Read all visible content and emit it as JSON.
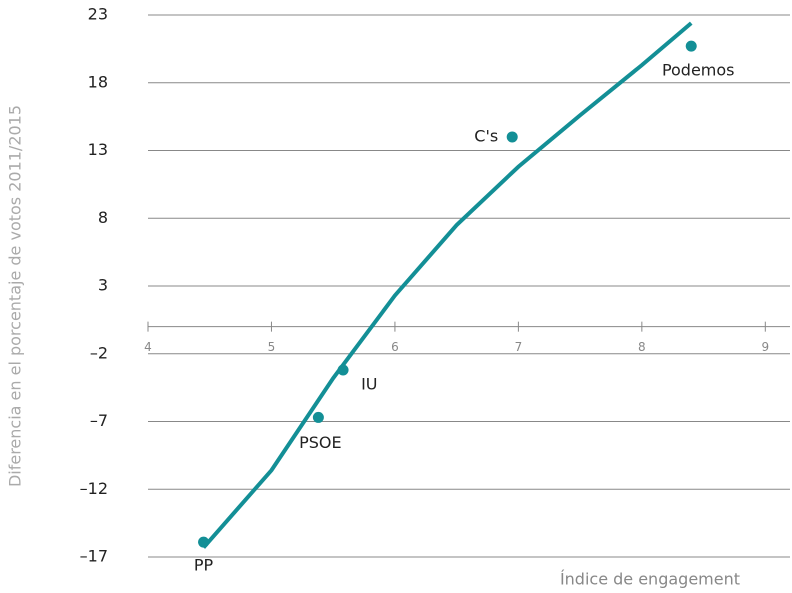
{
  "chart_data": {
    "type": "scatter",
    "ylabel": "Diferencia en el porcentaje de votos 2011/2015",
    "xlabel": "Índice de engagement",
    "labels": [
      "PP",
      "PSOE",
      "IU",
      "C's",
      "Podemos"
    ],
    "x": [
      4.45,
      5.38,
      5.58,
      6.95,
      8.4
    ],
    "values": [
      -15.9,
      -6.7,
      -3.2,
      14,
      20.7
    ],
    "color": "#138f96",
    "trend": {
      "x": [
        4.45,
        5,
        5.5,
        6,
        6.5,
        7,
        7.5,
        8,
        8.4
      ],
      "values": [
        -16.3,
        -10.6,
        -3.8,
        2.3,
        7.5,
        11.8,
        15.6,
        19.3,
        22.4
      ]
    },
    "xlim": [
      4,
      9.2
    ],
    "xticks": [
      4,
      5,
      6,
      7,
      8,
      9
    ],
    "ylim": [
      -17,
      23
    ],
    "yticks": [
      23,
      18,
      13,
      8,
      3,
      {
        "value": -2,
        "label": "–2"
      },
      {
        "value": -7,
        "label": "–7"
      },
      {
        "value": -12,
        "label": "–12"
      },
      {
        "value": -17,
        "label": "–17"
      }
    ],
    "grid": true
  }
}
